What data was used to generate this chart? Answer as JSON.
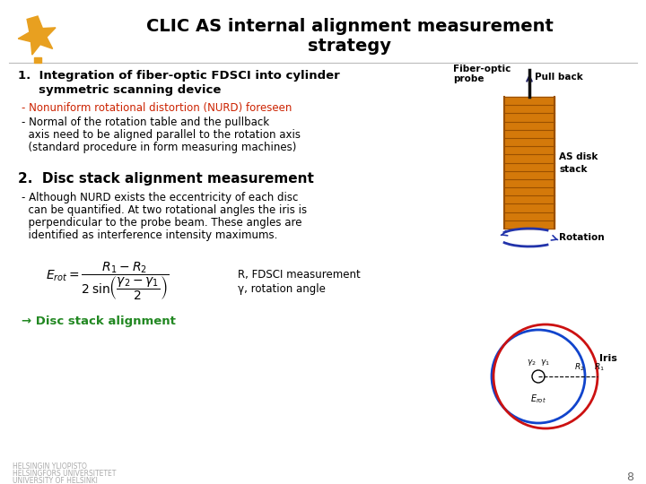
{
  "title_line1": "CLIC AS internal alignment measurement",
  "title_line2": "strategy",
  "background_color": "#ffffff",
  "logo_color": "#e8a020",
  "text_color": "#000000",
  "red_text_color": "#cc2200",
  "green_color": "#228822",
  "footer_line1": "HELSINGIN YLIOPISTO",
  "footer_line2": "HELSINGFORS UNIVERSITETET",
  "footer_line3": "UNIVERSITY OF HELSINKI",
  "page_number": "8",
  "disk_color": "#d4790a",
  "disk_stripe_color": "#9a5000",
  "probe_color": "#111111",
  "arrow_rotation_color": "#2233aa",
  "circle_blue": "#1144cc",
  "circle_red": "#cc1111",
  "iris_label": "Iris"
}
